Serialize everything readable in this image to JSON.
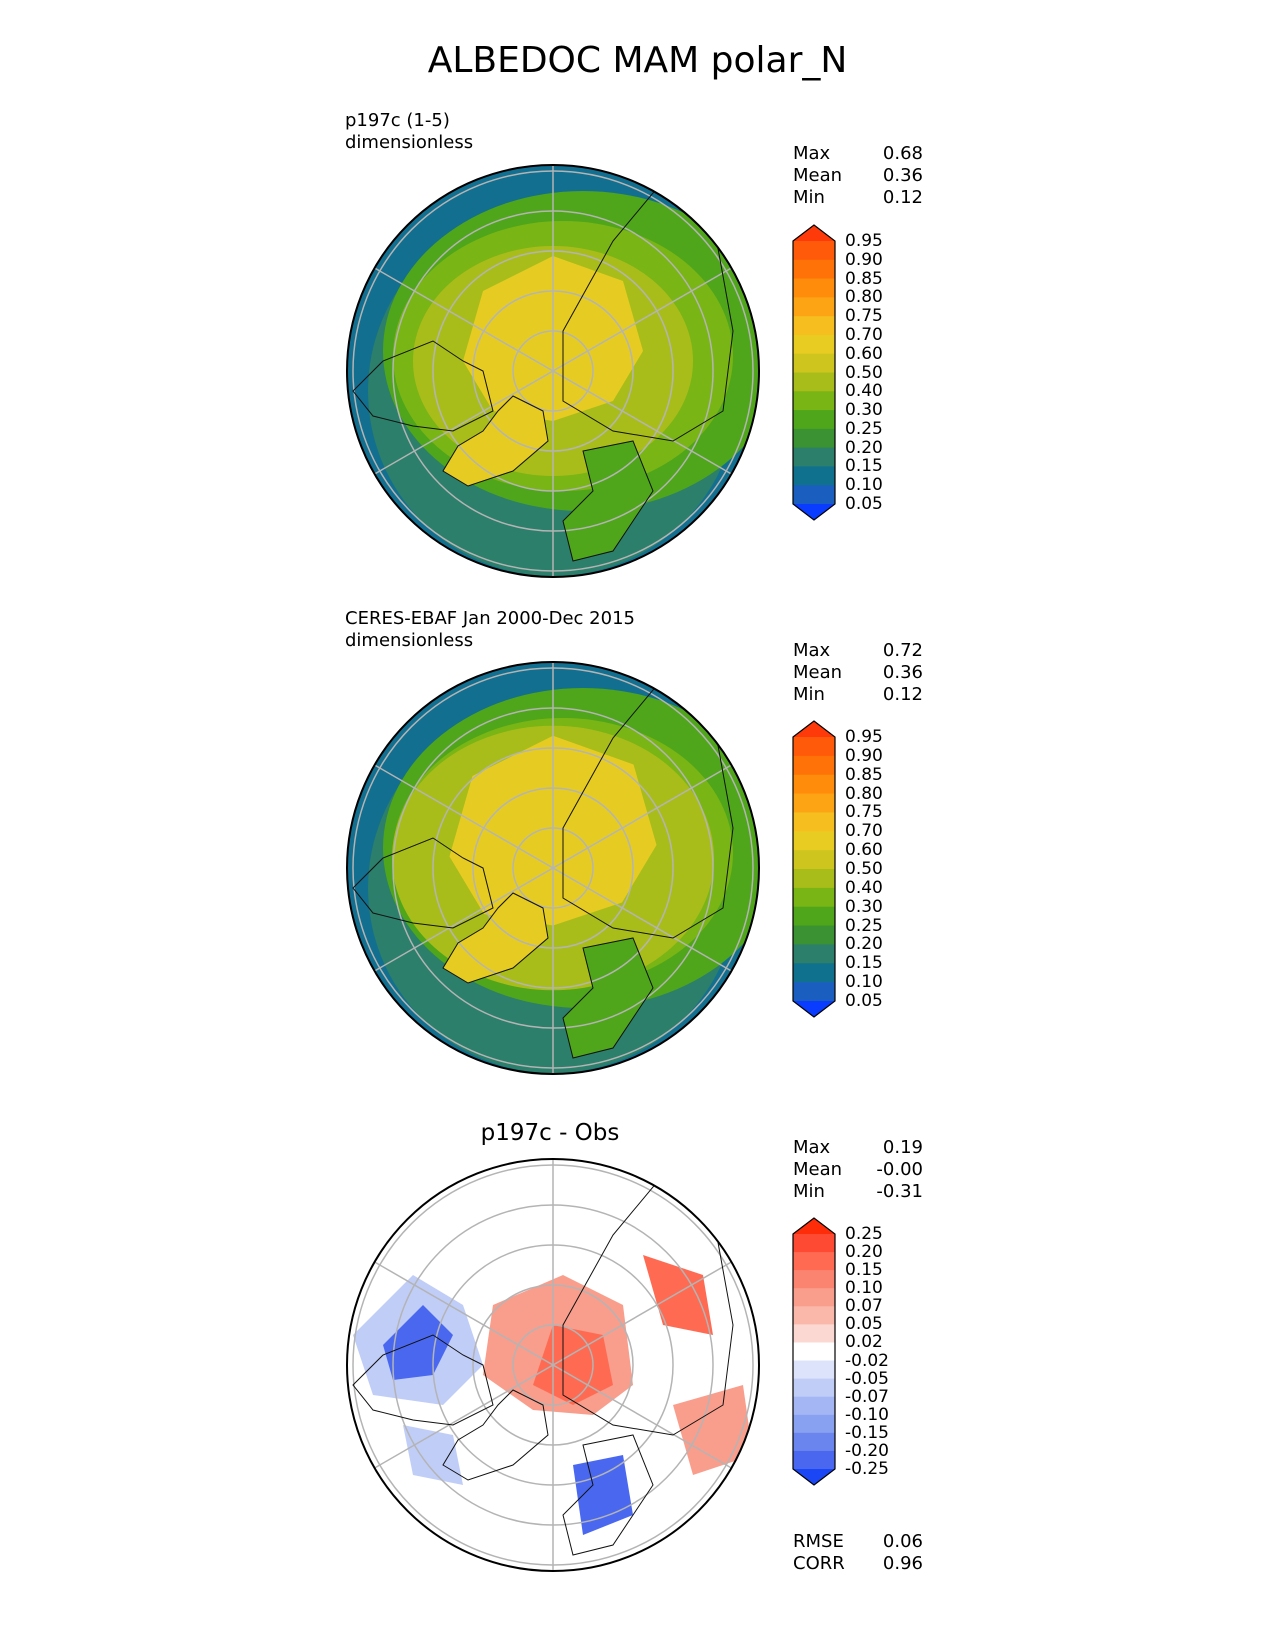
{
  "title": "ALBEDOC MAM polar_N",
  "panels": [
    {
      "label_line1": "p197c (1-5)",
      "label_line2": "dimensionless",
      "stats": [
        {
          "name": "Max",
          "value": "0.68"
        },
        {
          "name": "Mean",
          "value": "0.36"
        },
        {
          "name": "Min",
          "value": "0.12"
        }
      ]
    },
    {
      "label_line1": "CERES-EBAF Jan 2000-Dec 2015",
      "label_line2": "dimensionless",
      "stats": [
        {
          "name": "Max",
          "value": "0.72"
        },
        {
          "name": "Mean",
          "value": "0.36"
        },
        {
          "name": "Min",
          "value": "0.12"
        }
      ]
    },
    {
      "title": "p197c - Obs",
      "stats": [
        {
          "name": "Max",
          "value": "0.19"
        },
        {
          "name": "Mean",
          "value": "-0.00"
        },
        {
          "name": "Min",
          "value": "-0.31"
        }
      ],
      "metrics": [
        {
          "name": "RMSE",
          "value": "0.06"
        },
        {
          "name": "CORR",
          "value": "0.96"
        }
      ]
    }
  ],
  "colorbar_main": {
    "labels": [
      "0.95",
      "0.90",
      "0.85",
      "0.80",
      "0.75",
      "0.70",
      "0.60",
      "0.50",
      "0.40",
      "0.30",
      "0.25",
      "0.20",
      "0.15",
      "0.10",
      "0.05"
    ],
    "colors": [
      "#ff3a0a",
      "#ff5a0a",
      "#ff7208",
      "#ff8c0a",
      "#fca414",
      "#f6be1e",
      "#e8cc22",
      "#cfc51f",
      "#a9bd1a",
      "#7ab516",
      "#4fa61a",
      "#3a9233",
      "#2b7f6b",
      "#10718e",
      "#1a5fbf",
      "#0a3cff"
    ]
  },
  "colorbar_diff": {
    "labels": [
      "0.25",
      "0.20",
      "0.15",
      "0.10",
      "0.07",
      "0.05",
      "0.02",
      "-0.02",
      "-0.05",
      "-0.07",
      "-0.10",
      "-0.15",
      "-0.20",
      "-0.25"
    ],
    "colors": [
      "#ff2c0a",
      "#ff4a33",
      "#ff6b52",
      "#fb8470",
      "#f99e8c",
      "#f9b8aa",
      "#fbd8d1",
      "#ffffff",
      "#dce3fa",
      "#c0cdf7",
      "#a4b7f4",
      "#88a1f1",
      "#6a86ee",
      "#4a68ef",
      "#1b46f5"
    ]
  },
  "map_colors": {
    "ocean": "#126f8f",
    "ocean_mid": "#2b7f6b",
    "land_low": "#4fa61a",
    "land_mid": "#7ab516",
    "land_high": "#a9bd1a",
    "ice": "#e6cc22",
    "diff_pos": "#f99e8c",
    "diff_pos_strong": "#ff6b52",
    "diff_neg": "#c0cdf7",
    "diff_neg_strong": "#4a68ef"
  }
}
